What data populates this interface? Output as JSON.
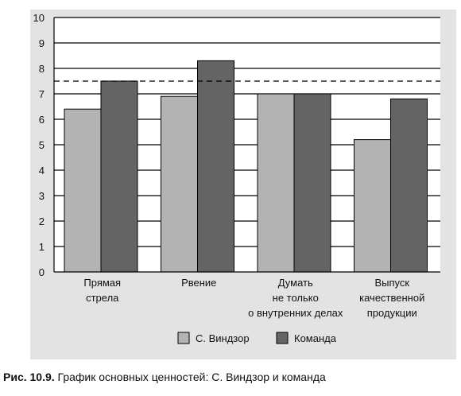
{
  "caption": {
    "figure_number": "Рис. 10.9.",
    "text": "График основных ценностей: С. Виндзор и команда"
  },
  "chart_data": {
    "type": "bar",
    "categories": [
      [
        "Прямая",
        "стрела"
      ],
      [
        "Рвение"
      ],
      [
        "Думать",
        "не только",
        "о внутренних делах"
      ],
      [
        "Выпуск",
        "качественной",
        "продукции"
      ]
    ],
    "series": [
      {
        "name": "С. Виндзор",
        "color": "#b3b3b3",
        "values": [
          6.4,
          6.9,
          7.0,
          5.2
        ]
      },
      {
        "name": "Команда",
        "color": "#646464",
        "values": [
          7.5,
          8.3,
          7.0,
          6.8
        ]
      }
    ],
    "ylim": [
      0,
      10
    ],
    "yticks": [
      "0",
      "1",
      "2",
      "3",
      "4",
      "5",
      "6",
      "7",
      "8",
      "9",
      "10"
    ],
    "reference_line": {
      "value": 7.5,
      "style": "dashed"
    },
    "grid": true,
    "legend_position": "bottom-center",
    "title": "",
    "xlabel": "",
    "ylabel": ""
  }
}
